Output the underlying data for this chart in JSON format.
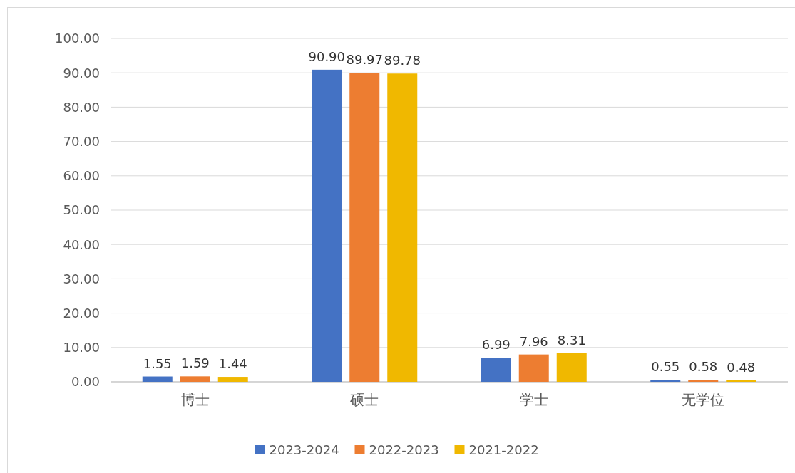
{
  "chart_data": {
    "type": "bar",
    "categories": [
      "博士",
      "硕士",
      "学士",
      "无学位"
    ],
    "series": [
      {
        "name": "2023-2024",
        "color": "#4472c4",
        "values": [
          1.55,
          90.9,
          6.99,
          0.55
        ],
        "value_labels": [
          "1.55",
          "90.90",
          "6.99",
          "0.55"
        ]
      },
      {
        "name": "2022-2023",
        "color": "#ed7d31",
        "values": [
          1.59,
          89.97,
          7.96,
          0.58
        ],
        "value_labels": [
          "1.59",
          "89.97",
          "7.96",
          "0.58"
        ]
      },
      {
        "name": "2021-2022",
        "color": "#f0b800",
        "values": [
          1.44,
          89.78,
          8.31,
          0.48
        ],
        "value_labels": [
          "1.44",
          "89.78",
          "8.31",
          "0.48"
        ]
      }
    ],
    "ylim": [
      0,
      100
    ],
    "yticks": [
      {
        "value": 0,
        "label": "0.00"
      },
      {
        "value": 10,
        "label": "10.00"
      },
      {
        "value": 20,
        "label": "20.00"
      },
      {
        "value": 30,
        "label": "30.00"
      },
      {
        "value": 40,
        "label": "40.00"
      },
      {
        "value": 50,
        "label": "50.00"
      },
      {
        "value": 60,
        "label": "60.00"
      },
      {
        "value": 70,
        "label": "70.00"
      },
      {
        "value": 80,
        "label": "80.00"
      },
      {
        "value": 90,
        "label": "90.00"
      },
      {
        "value": 100,
        "label": "100.00"
      }
    ],
    "grid": "y",
    "legend": "bottom"
  }
}
